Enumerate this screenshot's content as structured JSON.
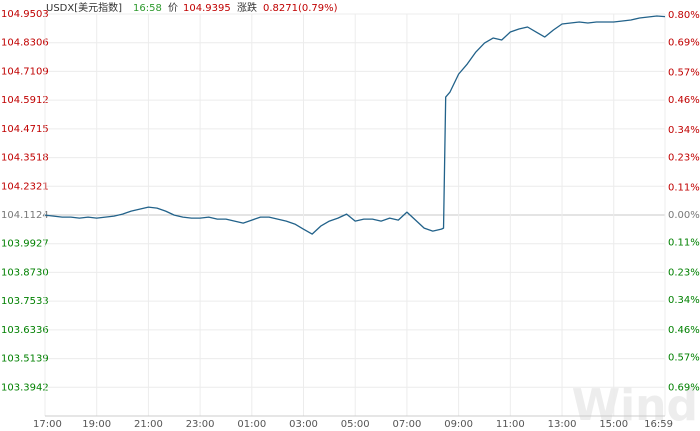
{
  "chart_data": {
    "type": "line",
    "title": "USDX[美元指数]",
    "time": "16:58",
    "price_label": "价",
    "price": 104.9395,
    "change_label": "涨跌",
    "change": "0.8271(0.79%)",
    "watermark": "Wind",
    "x": [
      "17:00",
      "17:20",
      "17:40",
      "18:00",
      "18:20",
      "18:40",
      "19:00",
      "19:20",
      "19:40",
      "20:00",
      "20:20",
      "20:40",
      "21:00",
      "21:20",
      "21:40",
      "22:00",
      "22:20",
      "22:40",
      "23:00",
      "23:20",
      "23:40",
      "00:00",
      "00:20",
      "00:40",
      "01:00",
      "01:20",
      "01:40",
      "02:00",
      "02:20",
      "02:40",
      "03:00",
      "03:20",
      "03:40",
      "04:00",
      "04:20",
      "04:40",
      "05:00",
      "05:20",
      "05:40",
      "06:00",
      "06:20",
      "06:40",
      "07:00",
      "07:20",
      "07:40",
      "08:00",
      "08:20",
      "08:25",
      "08:30",
      "08:40",
      "09:00",
      "09:20",
      "09:40",
      "10:00",
      "10:20",
      "10:40",
      "11:00",
      "11:20",
      "11:40",
      "12:00",
      "12:20",
      "12:40",
      "13:00",
      "13:20",
      "13:40",
      "14:00",
      "14:20",
      "14:40",
      "15:00",
      "15:20",
      "15:40",
      "16:00",
      "16:20",
      "16:40",
      "16:59"
    ],
    "series": [
      {
        "name": "USDX",
        "color": "#22628a",
        "values": [
          104.1119,
          104.1078,
          104.1036,
          104.1036,
          104.0994,
          104.1036,
          104.0994,
          104.1036,
          104.1078,
          104.1161,
          104.1286,
          104.137,
          104.1453,
          104.1411,
          104.1286,
          104.1119,
          104.1036,
          104.0994,
          104.0994,
          104.1036,
          104.0952,
          104.0952,
          104.0869,
          104.0786,
          104.0911,
          104.1036,
          104.1036,
          104.0952,
          104.0869,
          104.0744,
          104.0535,
          104.0328,
          104.0661,
          104.0869,
          104.0994,
          104.1161,
          104.0869,
          104.0952,
          104.0952,
          104.0869,
          104.0994,
          104.0911,
          104.1244,
          104.0911,
          104.0577,
          104.0452,
          104.0535,
          104.0577,
          104.6041,
          104.625,
          104.6997,
          104.7418,
          104.7918,
          104.8293,
          104.8502,
          104.8419,
          104.8752,
          104.8877,
          104.8961,
          104.8752,
          104.8544,
          104.8836,
          104.9086,
          104.9128,
          104.9169,
          104.9128,
          104.9169,
          104.9169,
          104.9169,
          104.9211,
          104.9253,
          104.9336,
          104.9378,
          104.942,
          104.9395
        ]
      }
    ],
    "ylim": [
      103.2745,
      104.9503
    ],
    "yticks": [
      104.9503,
      104.8306,
      104.7109,
      104.5912,
      104.4715,
      104.3518,
      104.2321,
      104.1124,
      103.9927,
      {
        "value": 103.873,
        "label": "103.8730"
      },
      103.7533,
      103.6336,
      103.5139,
      103.3942
    ],
    "y2lim": [
      -0.8048,
      0.8048
    ],
    "y2ticks": [
      {
        "value": 0.8,
        "label": "0.80%"
      },
      {
        "value": 0.69,
        "label": "0.69%"
      },
      {
        "value": 0.57,
        "label": "0.57%"
      },
      {
        "value": 0.46,
        "label": "0.46%"
      },
      {
        "value": 0.34,
        "label": "0.34%"
      },
      {
        "value": 0.23,
        "label": "0.23%"
      },
      {
        "value": 0.11,
        "label": "0.11%"
      },
      {
        "value": 0,
        "label": "0.00%"
      },
      {
        "value": -0.11,
        "label": "0.11%"
      },
      {
        "value": -0.23,
        "label": "0.23%"
      },
      {
        "value": -0.34,
        "label": "0.34%"
      },
      {
        "value": -0.46,
        "label": "0.46%"
      },
      {
        "value": -0.57,
        "label": "0.57%"
      },
      {
        "value": -0.69,
        "label": "0.69%"
      }
    ],
    "xticks": [
      "17:00",
      "19:00",
      "21:00",
      "23:00",
      "01:00",
      "03:00",
      "05:00",
      "07:00",
      "09:00",
      "11:00",
      "13:00",
      "15:00",
      "16:59"
    ],
    "grid": true,
    "up_color": "#c00000",
    "down_color": "#008000",
    "flat_color": "#777777"
  }
}
